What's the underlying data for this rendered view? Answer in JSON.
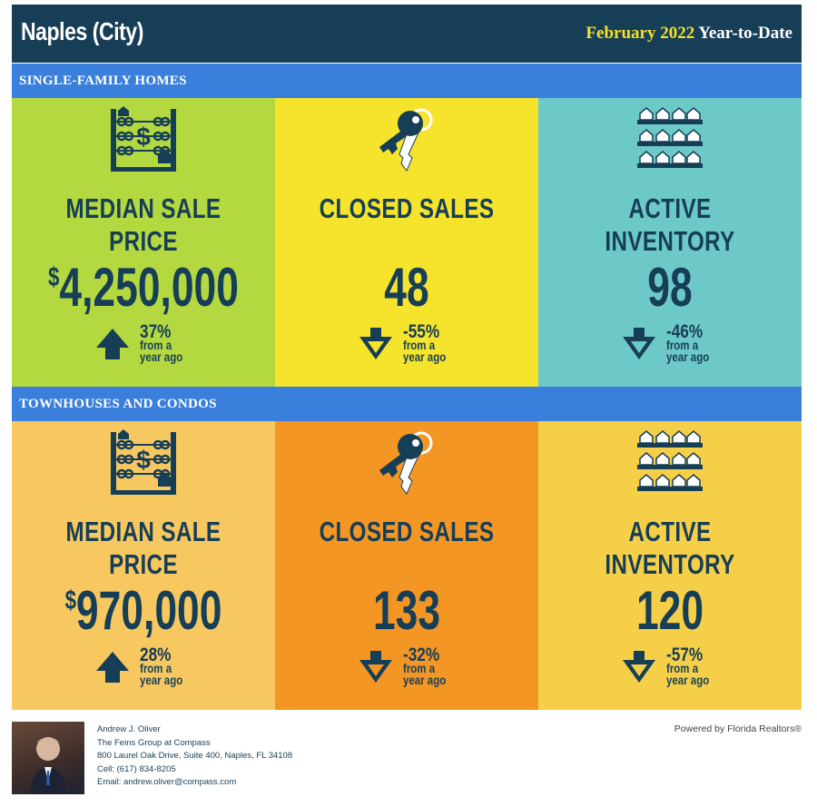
{
  "header": {
    "city": "Naples (City)",
    "period_highlight": "February 2022",
    "period_rest": "Year-to-Date"
  },
  "sections": [
    {
      "title": "SINGLE-FAMILY HOMES",
      "tiles": [
        {
          "icon": "abacus-dollar-icon",
          "label": "MEDIAN SALE PRICE",
          "currency": "$",
          "value": "4,250,000",
          "change": "37%",
          "direction": "up",
          "note1": "from a",
          "note2": "year ago",
          "bg": "#b3d840"
        },
        {
          "icon": "keys-icon",
          "label": "CLOSED SALES",
          "currency": "",
          "value": "48",
          "change": "-55%",
          "direction": "down",
          "note1": "from a",
          "note2": "year ago",
          "bg": "#f6e42c"
        },
        {
          "icon": "houses-shelves-icon",
          "label": "ACTIVE INVENTORY",
          "currency": "",
          "value": "98",
          "change": "-46%",
          "direction": "down",
          "note1": "from a",
          "note2": "year ago",
          "bg": "#6cc9c7"
        }
      ]
    },
    {
      "title": "TOWNHOUSES AND CONDOS",
      "tiles": [
        {
          "icon": "abacus-dollar-icon",
          "label": "MEDIAN SALE PRICE",
          "currency": "$",
          "value": "970,000",
          "change": "28%",
          "direction": "up",
          "note1": "from a",
          "note2": "year ago",
          "bg": "#f7c860"
        },
        {
          "icon": "keys-icon",
          "label": "CLOSED SALES",
          "currency": "",
          "value": "133",
          "change": "-32%",
          "direction": "down",
          "note1": "from a",
          "note2": "year ago",
          "bg": "#f39624"
        },
        {
          "icon": "houses-shelves-icon",
          "label": "ACTIVE INVENTORY",
          "currency": "",
          "value": "120",
          "change": "-57%",
          "direction": "down",
          "note1": "from a",
          "note2": "year ago",
          "bg": "#f5cf47"
        }
      ]
    }
  ],
  "footer": {
    "name": "Andrew J. Oliver",
    "company": "The Feins Group at Compass",
    "address": "800 Laurel Oak Drive, Suite 400, Naples, FL 34108",
    "cell": "Cell: (617) 834-8205",
    "email": "Email: andrew.oliver@compass.com",
    "powered": "Powered by Florida Realtors®"
  },
  "colors": {
    "navy": "#173e57",
    "band_blue": "#3a7fdc",
    "highlight_yellow": "#f3e12a"
  }
}
